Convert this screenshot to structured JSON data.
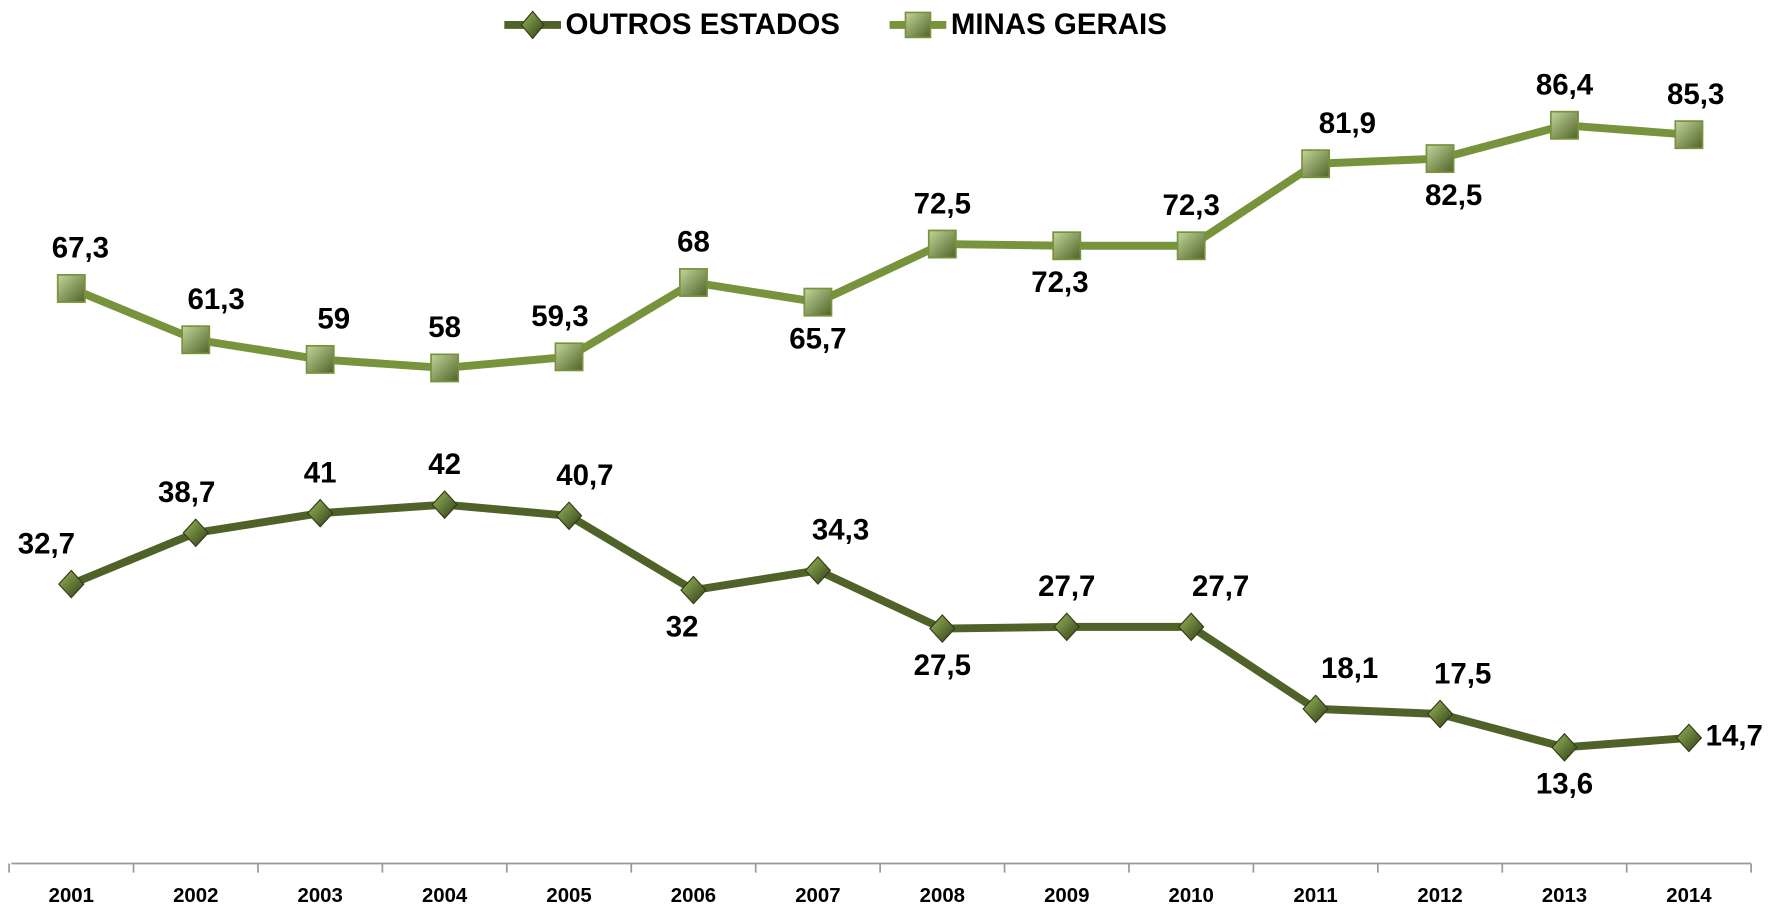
{
  "chart_data": {
    "type": "line",
    "categories": [
      "2001",
      "2002",
      "2003",
      "2004",
      "2005",
      "2006",
      "2007",
      "2008",
      "2009",
      "2010",
      "2011",
      "2012",
      "2013",
      "2014"
    ],
    "series": [
      {
        "name": "OUTROS ESTADOS",
        "color": "#4f6228",
        "marker": "diamond",
        "values": [
          32.7,
          38.7,
          41,
          42,
          40.7,
          32,
          34.3,
          27.5,
          27.7,
          27.7,
          18.1,
          17.5,
          13.6,
          14.7
        ],
        "value_labels": [
          "32,7",
          "38,7",
          "41",
          "42",
          "40,7",
          "32",
          "34,3",
          "27,5",
          "27,7",
          "27,7",
          "18,1",
          "17,5",
          "13,6",
          "14,7"
        ]
      },
      {
        "name": "MINAS GERAIS",
        "color": "#77933c",
        "marker": "square",
        "values": [
          67.3,
          61.3,
          59,
          58,
          59.3,
          68,
          65.7,
          72.5,
          72.3,
          72.3,
          81.9,
          82.5,
          86.4,
          85.3
        ],
        "value_labels": [
          "67,3",
          "61,3",
          "59",
          "58",
          "59,3",
          "68",
          "65,7",
          "72,5",
          "72,3",
          "72,3",
          "81,9",
          "82,5",
          "86,4",
          "85,3"
        ]
      }
    ],
    "ylim": [
      0,
      100
    ],
    "grid": false,
    "legend": "top"
  }
}
